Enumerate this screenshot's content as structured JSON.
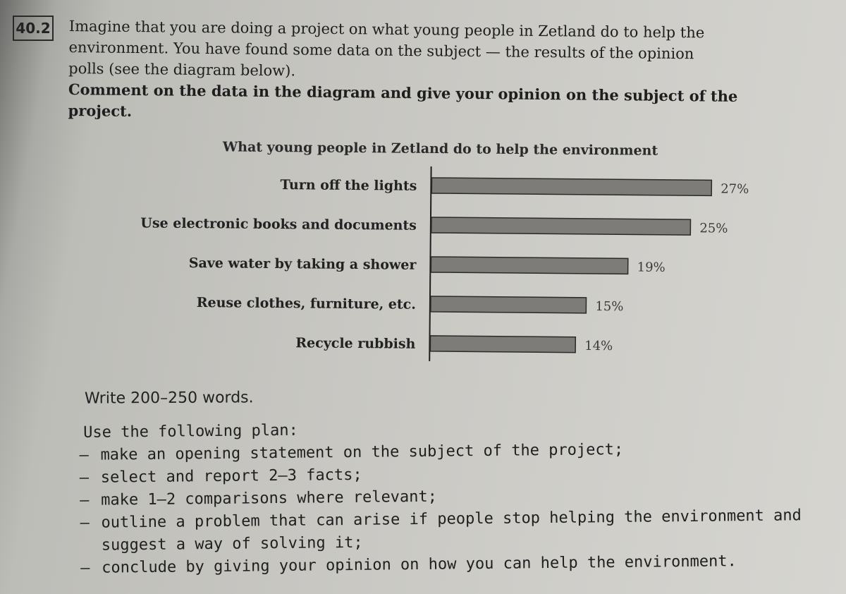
{
  "task": {
    "number": "40.2",
    "lines": [
      "Imagine that you are doing a project on what young people in Zetland do to help the",
      "environment. You have found some data on the subject — the results of the opinion",
      "polls (see the diagram below)."
    ],
    "instruction_lines": [
      "Comment on the data in the diagram and give your opinion on the subject of the",
      "project."
    ]
  },
  "chart_data": {
    "type": "bar",
    "orientation": "horizontal",
    "title": "What young people in Zetland do to help the environment",
    "categories": [
      "Turn off the lights",
      "Use electronic books and documents",
      "Save water by taking a shower",
      "Reuse clothes, furniture, etc.",
      "Recycle rubbish"
    ],
    "values": [
      27,
      25,
      19,
      15,
      14
    ],
    "value_labels": [
      "27%",
      "25%",
      "19%",
      "15%",
      "14%"
    ],
    "unit": "%",
    "xlim": [
      0,
      30
    ],
    "grid": false,
    "legend": "none",
    "bar_color": "#7d7c78"
  },
  "word_count": "Write 200–250 words.",
  "plan": {
    "intro": "Use the following plan:",
    "items": [
      "make an opening statement on the subject of the project;",
      "select and report 2–3 facts;",
      "make 1–2 comparisons where relevant;",
      "outline a problem that can arise if people stop helping the environment and suggest a way of solving it;",
      "conclude by giving your opinion on how you can help the environment."
    ]
  }
}
